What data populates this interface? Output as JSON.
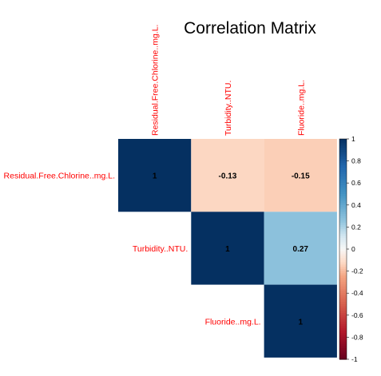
{
  "chart_data": {
    "type": "heatmap",
    "title": "Correlation Matrix",
    "variables": [
      "Residual.Free.Chlorine..mg.L.",
      "Turbidity..NTU.",
      "Fluoride..mg.L."
    ],
    "matrix": [
      [
        1,
        -0.13,
        -0.15
      ],
      [
        -0.13,
        1,
        0.27
      ],
      [
        -0.15,
        0.27,
        1
      ]
    ],
    "cell_labels": [
      [
        "1",
        "-0.13",
        "-0.15"
      ],
      [
        "",
        "1",
        "0.27"
      ],
      [
        "",
        "",
        "1"
      ]
    ],
    "display": "upper",
    "colorbar": {
      "range": [
        -1,
        1
      ],
      "ticks": [
        "1",
        "0.8",
        "0.6",
        "0.4",
        "0.2",
        "0",
        "-0.2",
        "-0.4",
        "-0.6",
        "-0.8",
        "-1"
      ],
      "tick_values": [
        1,
        0.8,
        0.6,
        0.4,
        0.2,
        0,
        -0.2,
        -0.4,
        -0.6,
        -0.8,
        -1
      ]
    },
    "colors": {
      "negative_end": "#67001F",
      "neutral": "#F7F7F7",
      "positive_end": "#053061",
      "label_color": "#FF0000"
    }
  }
}
